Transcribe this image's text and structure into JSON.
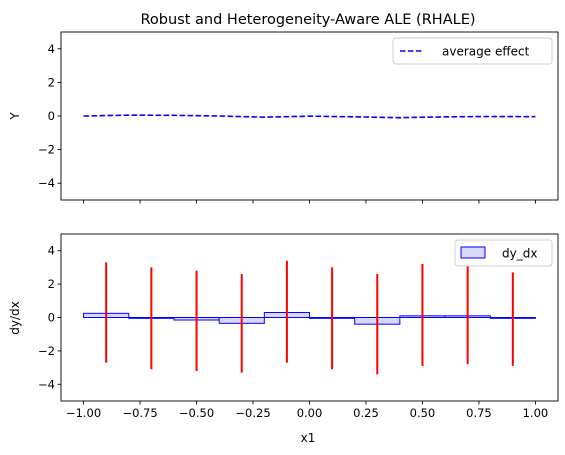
{
  "title": "Robust and Heterogeneity-Aware ALE (RHALE)",
  "colors": {
    "average_effect": "#0000ff",
    "dy_dx_edge": "#0000ff",
    "dy_dx_fill": "#d8d8ff",
    "error_bars": "#ff0000"
  },
  "chart_data": [
    {
      "type": "line",
      "title": "Robust and Heterogeneity-Aware ALE (RHALE)",
      "ylabel": "Y",
      "xlabel": "",
      "xlim": [
        -1.1,
        1.1
      ],
      "ylim": [
        -5,
        5
      ],
      "yticks": [
        4,
        2,
        0,
        -2,
        -4
      ],
      "ytick_labels": [
        "4",
        "2",
        "0",
        "−2",
        "−4"
      ],
      "legend": "top-right",
      "series": [
        {
          "name": "average effect",
          "style": "dashed",
          "x": [
            -1.0,
            -0.8,
            -0.6,
            -0.4,
            -0.2,
            0.0,
            0.2,
            0.4,
            0.6,
            0.8,
            1.0
          ],
          "y": [
            0.0,
            0.05,
            0.04,
            0.0,
            -0.07,
            -0.01,
            -0.05,
            -0.1,
            -0.05,
            -0.03,
            -0.04
          ]
        }
      ]
    },
    {
      "type": "bar",
      "xlabel": "x1",
      "ylabel": "dy/dx",
      "xlim": [
        -1.1,
        1.1
      ],
      "ylim": [
        -5,
        5
      ],
      "xticks": [
        -1.0,
        -0.75,
        -0.5,
        -0.25,
        0.0,
        0.25,
        0.5,
        0.75,
        1.0
      ],
      "xtick_labels": [
        "−1.00",
        "−0.75",
        "−0.50",
        "−0.25",
        "0.00",
        "0.25",
        "0.50",
        "0.75",
        "1.00"
      ],
      "yticks": [
        4,
        2,
        0,
        -2,
        -4
      ],
      "ytick_labels": [
        "4",
        "2",
        "0",
        "−2",
        "−4"
      ],
      "legend": "top-right",
      "series": [
        {
          "name": "dy_dx",
          "bin_edges": [
            -1.0,
            -0.8,
            -0.6,
            -0.4,
            -0.2,
            0.0,
            0.2,
            0.4,
            0.6,
            0.8,
            1.0
          ],
          "values": [
            0.25,
            -0.05,
            -0.15,
            -0.35,
            0.3,
            -0.05,
            -0.4,
            0.1,
            0.1,
            -0.05
          ]
        }
      ],
      "error_bars": {
        "x": [
          -0.9,
          -0.7,
          -0.5,
          -0.3,
          -0.1,
          0.1,
          0.3,
          0.5,
          0.7,
          0.9
        ],
        "low": [
          -2.7,
          -3.1,
          -3.2,
          -3.3,
          -2.7,
          -3.1,
          -3.4,
          -2.9,
          -2.8,
          -2.9
        ],
        "high": [
          3.3,
          3.0,
          2.8,
          2.6,
          3.4,
          3.0,
          2.6,
          3.2,
          3.1,
          2.7
        ]
      }
    }
  ]
}
